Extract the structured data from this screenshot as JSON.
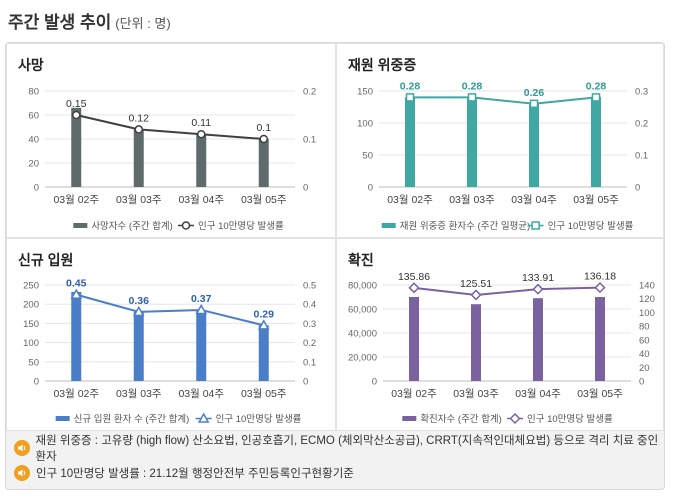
{
  "page": {
    "title": "주간 발생 추이",
    "unit": "(단위 : 명)"
  },
  "notes": [
    {
      "icon": "speaker-icon",
      "text": "재원 위중증 : 고유량 (high flow) 산소요법, 인공호흡기, ECMO (체외막산소공급), CRRT(지속적인대체요법) 등으로 격리 치료 중인 환자"
    },
    {
      "icon": "speaker-icon",
      "text": "인구 10만명당 발생률 : 21.12월 행정안전부 주민등록인구현황기준"
    }
  ],
  "chart_data": [
    {
      "type": "bar",
      "title": "사망",
      "categories": [
        "03월 02주",
        "03월 03주",
        "03월 04주",
        "03월 05주"
      ],
      "series": [
        {
          "name": "사망자수 (주간 합계)",
          "kind": "bar",
          "axis": "left",
          "values": [
            66,
            48,
            44,
            40
          ]
        },
        {
          "name": "인구 10만명당 발생률",
          "kind": "line",
          "axis": "right",
          "values": [
            0.15,
            0.12,
            0.11,
            0.1
          ]
        }
      ],
      "data_labels": [
        "0.15",
        "0.12",
        "0.11",
        "0.1"
      ],
      "ylim": [
        0,
        80
      ],
      "yticks": [
        "0",
        "20",
        "40",
        "60",
        "80"
      ],
      "y2lim": [
        0,
        0.2
      ],
      "y2ticks": [
        "0",
        "0.1",
        "0.2"
      ],
      "colors": {
        "bar": "#5f6b6b",
        "line": "#404040",
        "marker": "circle",
        "label": "#333333"
      },
      "legend": "bottom"
    },
    {
      "type": "bar",
      "title": "재원 위중증",
      "categories": [
        "03월 02주",
        "03월 03주",
        "03월 04주",
        "03월 05주"
      ],
      "series": [
        {
          "name": "재원 위중증 환자수 (주간 일평균)",
          "kind": "bar",
          "axis": "left",
          "values": [
            140,
            140,
            130,
            141
          ]
        },
        {
          "name": "인구 10만명당 발생률",
          "kind": "line",
          "axis": "right",
          "values": [
            0.28,
            0.28,
            0.26,
            0.28
          ]
        }
      ],
      "data_labels": [
        "0.28",
        "0.28",
        "0.26",
        "0.28"
      ],
      "ylim": [
        0,
        150
      ],
      "yticks": [
        "0",
        "50",
        "100",
        "150"
      ],
      "y2lim": [
        0,
        0.3
      ],
      "y2ticks": [
        "0",
        "0.1",
        "0.2",
        "0.3"
      ],
      "colors": {
        "bar": "#3fa8a2",
        "line": "#3fa8a2",
        "marker": "square",
        "label": "#2f9a94"
      },
      "legend": "bottom"
    },
    {
      "type": "bar",
      "title": "신규 입원",
      "categories": [
        "03월 02주",
        "03월 03주",
        "03월 04주",
        "03월 05주"
      ],
      "series": [
        {
          "name": "신규 입원 환자 수 (주간 합계)",
          "kind": "bar",
          "axis": "left",
          "values": [
            232,
            180,
            184,
            145
          ]
        },
        {
          "name": "인구 10만명당 발생률",
          "kind": "line",
          "axis": "right",
          "values": [
            0.45,
            0.36,
            0.37,
            0.29
          ]
        }
      ],
      "data_labels": [
        "0.45",
        "0.36",
        "0.37",
        "0.29"
      ],
      "ylim": [
        0,
        250
      ],
      "yticks": [
        "0",
        "50",
        "100",
        "150",
        "200",
        "250"
      ],
      "y2lim": [
        0,
        0.5
      ],
      "y2ticks": [
        "0",
        "0.1",
        "0.2",
        "0.3",
        "0.4",
        "0.5"
      ],
      "colors": {
        "bar": "#4a7ec9",
        "line": "#4a7ec9",
        "marker": "triangle",
        "label": "#2f5fae"
      },
      "legend": "bottom"
    },
    {
      "type": "bar",
      "title": "확진",
      "categories": [
        "03월 02주",
        "03월 03주",
        "03월 04주",
        "03월 05주"
      ],
      "series": [
        {
          "name": "확진자수 (주간 합계)",
          "kind": "bar",
          "axis": "left",
          "values": [
            70000,
            64000,
            69000,
            70000
          ]
        },
        {
          "name": "인구 10만명당 발생률",
          "kind": "line",
          "axis": "right",
          "values": [
            135.86,
            125.51,
            133.91,
            136.18
          ]
        }
      ],
      "data_labels": [
        "135.86",
        "125.51",
        "133.91",
        "136.18"
      ],
      "ylim": [
        0,
        80000
      ],
      "yticks": [
        "0",
        "20,000",
        "40,000",
        "60,000",
        "80,000"
      ],
      "y2lim": [
        0,
        140
      ],
      "y2ticks": [
        "0",
        "20",
        "40",
        "60",
        "80",
        "100",
        "120",
        "140"
      ],
      "colors": {
        "bar": "#7a62a0",
        "line": "#7a62a0",
        "marker": "diamond",
        "label": "#333333"
      },
      "legend": "bottom"
    }
  ]
}
